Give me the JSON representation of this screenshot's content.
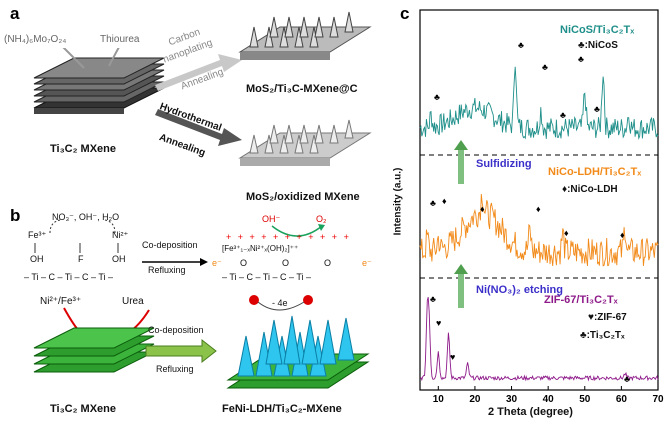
{
  "panel_a": {
    "letter": "a",
    "precursor_left": "(NH₄)₆Mo₇O₂₄",
    "precursor_right": "Thiourea",
    "substrate": "Ti₃C₂ MXene",
    "step_top_line1": "Carbon",
    "step_top_line2": "nanoplating",
    "step_top_line3": "Annealing",
    "product_top": "MoS₂/Ti₃C-MXene@C",
    "step_bottom_line1": "Hydrothermal",
    "step_bottom_line2": "Annealing",
    "product_bottom": "MoS₂/oxidized MXene"
  },
  "panel_b": {
    "letter": "b",
    "ions": "NO₃⁻, OH⁻, H₂O",
    "fe": "Fe³⁺",
    "ni": "Ni²⁺",
    "oh_minus": "OH⁻",
    "o2": "O₂",
    "ldh_formula": "[Fe³⁺₁₋ₓNi²⁺ₓ(OH)₂]⁺⁺",
    "step1_line1": "Co-deposition",
    "step1_line2": "Refluxing",
    "left_chain": "– Ti – C – Ti – C – Ti –",
    "right_chain": "– Ti – C – Ti – C – Ti –",
    "oh": "OH",
    "f": "F",
    "o": "O",
    "e_minus": "e⁻",
    "reactants": "Ni²⁺/Fe³⁺",
    "urea": "Urea",
    "step2_line1": "Co-deposition",
    "step2_line2": "Refluxing",
    "minus_4e": "- 4e",
    "substrate": "Ti₃C₂ MXene",
    "product": "FeNi-LDH/Ti₃C₂-MXene"
  },
  "panel_c": {
    "letter": "c",
    "ylabel": "Intensity (a.u.)",
    "xlabel": "2 Theta (degree)",
    "xticks": [
      "10",
      "20",
      "30",
      "40",
      "50",
      "60",
      "70"
    ],
    "top_title": "NiCoS/Ti₃C₂Tₓ",
    "top_legend": "♣:NiCoS",
    "arrow1_label": "Sulfidizing",
    "mid_title": "NiCo-LDH/Ti₃C₂Tₓ",
    "mid_legend": "♦:NiCo-LDH",
    "arrow2_label": "Ni(NO₃)₂  etching",
    "bot_title": "ZIF-67/Ti₃C₂Tₓ",
    "bot_legend1": "♥:ZIF-67",
    "bot_legend2": "♣:Ti₃C₂Tₓ",
    "colors": {
      "top": "#1f8f8a",
      "mid": "#f28a1a",
      "bot": "#8e1a8a"
    }
  },
  "chart_data": {
    "type": "line",
    "xlabel": "2 Theta (degree)",
    "ylabel": "Intensity (a.u.)",
    "xlim": [
      5,
      70
    ],
    "series": [
      {
        "name": "NiCoS/Ti₃C₂Tₓ",
        "peaks_deg": [
          8,
          31,
          38,
          50,
          55,
          62
        ]
      },
      {
        "name": "NiCo-LDH/Ti₃C₂Tₓ",
        "peaks_deg": [
          7,
          10,
          22,
          35,
          44,
          61
        ]
      },
      {
        "name": "ZIF-67/Ti₃C₂Tₓ",
        "peaks_deg": [
          7,
          7.5,
          10,
          12.8,
          18,
          61
        ]
      }
    ]
  }
}
